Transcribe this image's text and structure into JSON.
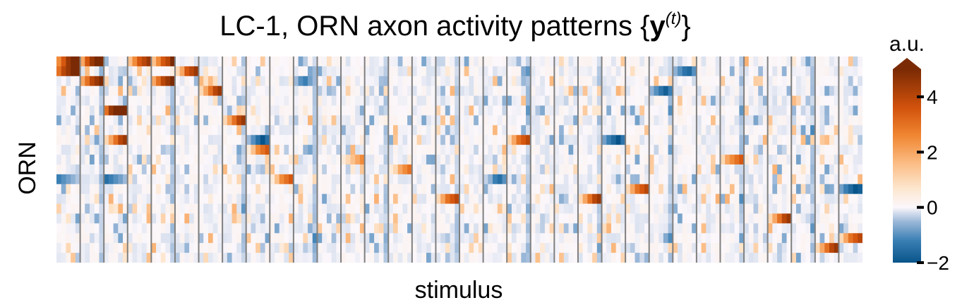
{
  "chart_data": {
    "type": "heatmap",
    "title": "LC-1, ORN axon activity patterns {",
    "title_symbol": "y",
    "title_sup": "(t)",
    "title_close": "}",
    "xlabel": "stimulus",
    "ylabel": "ORN",
    "n_rows": 21,
    "n_groups": 34,
    "conc_per_group": 5,
    "separator_color": "#7f7f7f",
    "colorbar": {
      "label": "a.u.",
      "range": [
        -2,
        5
      ],
      "ticks": [
        -2,
        0,
        2,
        4
      ],
      "tick_labels": [
        "−2",
        "0",
        "2",
        "4"
      ],
      "extend": "max",
      "colormap_stops": [
        {
          "v": -2.0,
          "c": "#08548a"
        },
        {
          "v": -1.2,
          "c": "#3a7fb4"
        },
        {
          "v": -0.5,
          "c": "#9db9d9"
        },
        {
          "v": 0.0,
          "c": "#fbf7fb"
        },
        {
          "v": 0.7,
          "c": "#fde6ce"
        },
        {
          "v": 1.6,
          "c": "#fbbc84"
        },
        {
          "v": 2.6,
          "c": "#f08632"
        },
        {
          "v": 3.6,
          "c": "#d2520c"
        },
        {
          "v": 5.0,
          "c": "#7a2a04"
        }
      ]
    },
    "highlights": [
      {
        "group": 0,
        "row": 0,
        "values": [
          2.5,
          3.5,
          4.5,
          5,
          5
        ]
      },
      {
        "group": 0,
        "row": 1,
        "values": [
          3,
          4,
          4.5,
          5,
          5
        ]
      },
      {
        "group": 1,
        "row": 0,
        "values": [
          2,
          3.5,
          4.5,
          5,
          5
        ]
      },
      {
        "group": 1,
        "row": 2,
        "values": [
          2,
          3,
          4,
          4.5,
          5
        ]
      },
      {
        "group": 2,
        "row": 5,
        "values": [
          3,
          4.5,
          5,
          5,
          5
        ]
      },
      {
        "group": 2,
        "row": 8,
        "values": [
          1,
          2,
          3,
          4,
          4.5
        ]
      },
      {
        "group": 3,
        "row": 0,
        "values": [
          1.5,
          2.5,
          3.5,
          4,
          4.5
        ]
      },
      {
        "group": 4,
        "row": 0,
        "values": [
          1.5,
          2.5,
          3.5,
          4,
          5
        ]
      },
      {
        "group": 4,
        "row": 2,
        "values": [
          2,
          3,
          4,
          4.5,
          5
        ]
      },
      {
        "group": 5,
        "row": 1,
        "values": [
          1,
          2,
          3.5,
          4,
          4.5
        ]
      },
      {
        "group": 6,
        "row": 3,
        "values": [
          1,
          2,
          3,
          4,
          4.5
        ]
      },
      {
        "group": 7,
        "row": 6,
        "values": [
          1,
          2,
          3,
          4,
          4.5
        ]
      },
      {
        "group": 8,
        "row": 9,
        "values": [
          0.5,
          1.5,
          2.5,
          3,
          3.5
        ]
      },
      {
        "group": 9,
        "row": 12,
        "values": [
          0.5,
          1.5,
          2.5,
          3,
          3.5
        ]
      },
      {
        "group": 12,
        "row": 10,
        "values": [
          0.5,
          1,
          1.5,
          2,
          2.5
        ]
      },
      {
        "group": 14,
        "row": 11,
        "values": [
          0.5,
          1,
          2,
          2.5,
          3
        ]
      },
      {
        "group": 16,
        "row": 14,
        "values": [
          1,
          2,
          3,
          3.5,
          4
        ]
      },
      {
        "group": 19,
        "row": 8,
        "values": [
          1,
          2,
          3,
          3.5,
          4
        ]
      },
      {
        "group": 22,
        "row": 14,
        "values": [
          1,
          2,
          3,
          4,
          4.5
        ]
      },
      {
        "group": 24,
        "row": 13,
        "values": [
          1,
          2,
          3,
          3.5,
          4
        ]
      },
      {
        "group": 28,
        "row": 10,
        "values": [
          1,
          2,
          2.5,
          3,
          3.5
        ]
      },
      {
        "group": 30,
        "row": 16,
        "values": [
          1,
          2,
          3,
          4,
          4.5
        ]
      },
      {
        "group": 32,
        "row": 19,
        "values": [
          1,
          2,
          3,
          4,
          4.5
        ]
      },
      {
        "group": 33,
        "row": 18,
        "values": [
          1,
          2,
          3,
          3.5,
          4
        ]
      }
    ],
    "negatives": [
      {
        "group": 0,
        "row": 12,
        "values": [
          -1.2,
          -1.0,
          -0.8,
          -0.6,
          -0.4
        ]
      },
      {
        "group": 2,
        "row": 12,
        "values": [
          -1.5,
          -1.2,
          -1.0,
          -0.8,
          -0.5
        ]
      },
      {
        "group": 8,
        "row": 8,
        "values": [
          -0.5,
          -1.0,
          -1.5,
          -2.0,
          -1.5
        ]
      },
      {
        "group": 10,
        "row": 2,
        "values": [
          -0.5,
          -1.0,
          -1.2,
          -0.8,
          -0.5
        ]
      },
      {
        "group": 18,
        "row": 12,
        "values": [
          -0.3,
          -0.6,
          -1.2,
          -1.5,
          -1.0
        ]
      },
      {
        "group": 23,
        "row": 8,
        "values": [
          -0.8,
          -1.2,
          -1.6,
          -2.0,
          -1.4
        ]
      },
      {
        "group": 25,
        "row": 3,
        "values": [
          -0.6,
          -1.0,
          -1.4,
          -1.8,
          -1.2
        ]
      },
      {
        "group": 26,
        "row": 1,
        "values": [
          -0.6,
          -1.0,
          -1.4,
          -1.6,
          -1.0
        ]
      },
      {
        "group": 33,
        "row": 13,
        "values": [
          -0.8,
          -1.2,
          -1.6,
          -2.0,
          -1.8
        ]
      }
    ]
  }
}
